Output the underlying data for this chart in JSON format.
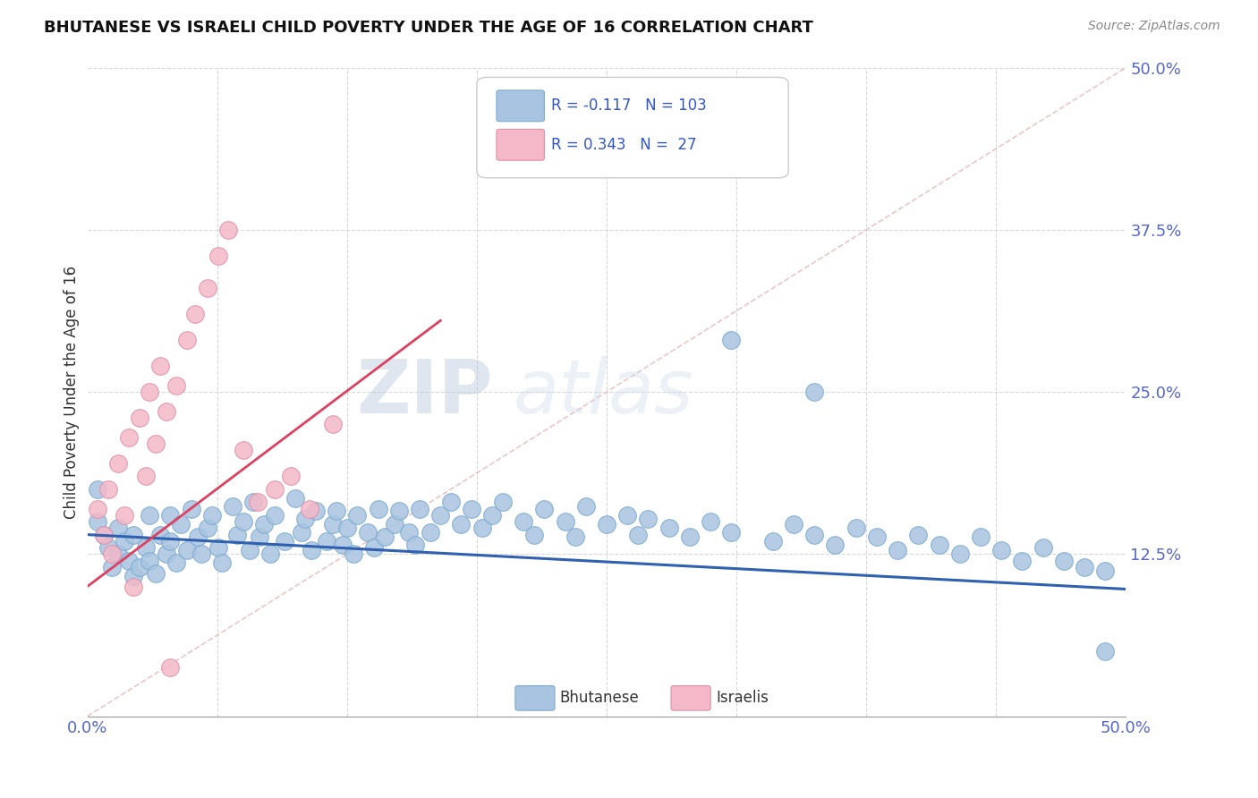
{
  "title": "BHUTANESE VS ISRAELI CHILD POVERTY UNDER THE AGE OF 16 CORRELATION CHART",
  "source": "Source: ZipAtlas.com",
  "ylabel": "Child Poverty Under the Age of 16",
  "xlim": [
    0.0,
    0.5
  ],
  "ylim": [
    0.0,
    0.5
  ],
  "blue_R": "-0.117",
  "blue_N": "103",
  "pink_R": "0.343",
  "pink_N": "27",
  "blue_color": "#a8c4e0",
  "blue_edge": "#7aaad0",
  "pink_color": "#f4b8c8",
  "pink_edge": "#e090a8",
  "blue_line_color": "#3060b0",
  "pink_line_color": "#e04060",
  "diag_line_color": "#e8c0c0",
  "grid_color": "#d8d8d8",
  "watermark_color": "#ccdaee",
  "blue_trend_x": [
    0.0,
    0.5
  ],
  "blue_trend_y": [
    0.14,
    0.098
  ],
  "pink_trend_x": [
    0.0,
    0.17
  ],
  "pink_trend_y": [
    0.1,
    0.305
  ],
  "blue_x": [
    0.005,
    0.005,
    0.008,
    0.01,
    0.012,
    0.015,
    0.015,
    0.018,
    0.02,
    0.022,
    0.022,
    0.025,
    0.028,
    0.03,
    0.03,
    0.033,
    0.035,
    0.038,
    0.04,
    0.04,
    0.043,
    0.045,
    0.048,
    0.05,
    0.053,
    0.055,
    0.058,
    0.06,
    0.063,
    0.065,
    0.07,
    0.072,
    0.075,
    0.078,
    0.08,
    0.083,
    0.085,
    0.088,
    0.09,
    0.095,
    0.1,
    0.103,
    0.105,
    0.108,
    0.11,
    0.115,
    0.118,
    0.12,
    0.123,
    0.125,
    0.128,
    0.13,
    0.135,
    0.138,
    0.14,
    0.143,
    0.148,
    0.15,
    0.155,
    0.158,
    0.16,
    0.165,
    0.17,
    0.175,
    0.18,
    0.185,
    0.19,
    0.195,
    0.2,
    0.21,
    0.215,
    0.22,
    0.23,
    0.235,
    0.24,
    0.25,
    0.26,
    0.265,
    0.27,
    0.28,
    0.29,
    0.3,
    0.31,
    0.33,
    0.34,
    0.35,
    0.36,
    0.37,
    0.38,
    0.39,
    0.4,
    0.41,
    0.42,
    0.43,
    0.44,
    0.45,
    0.46,
    0.47,
    0.48,
    0.49,
    0.35,
    0.31,
    0.49
  ],
  "blue_y": [
    0.175,
    0.15,
    0.14,
    0.13,
    0.115,
    0.145,
    0.125,
    0.135,
    0.12,
    0.14,
    0.108,
    0.115,
    0.13,
    0.155,
    0.12,
    0.11,
    0.14,
    0.125,
    0.155,
    0.135,
    0.118,
    0.148,
    0.128,
    0.16,
    0.138,
    0.125,
    0.145,
    0.155,
    0.13,
    0.118,
    0.162,
    0.14,
    0.15,
    0.128,
    0.165,
    0.138,
    0.148,
    0.125,
    0.155,
    0.135,
    0.168,
    0.142,
    0.152,
    0.128,
    0.158,
    0.135,
    0.148,
    0.158,
    0.132,
    0.145,
    0.125,
    0.155,
    0.142,
    0.13,
    0.16,
    0.138,
    0.148,
    0.158,
    0.142,
    0.132,
    0.16,
    0.142,
    0.155,
    0.165,
    0.148,
    0.16,
    0.145,
    0.155,
    0.165,
    0.15,
    0.14,
    0.16,
    0.15,
    0.138,
    0.162,
    0.148,
    0.155,
    0.14,
    0.152,
    0.145,
    0.138,
    0.15,
    0.142,
    0.135,
    0.148,
    0.14,
    0.132,
    0.145,
    0.138,
    0.128,
    0.14,
    0.132,
    0.125,
    0.138,
    0.128,
    0.12,
    0.13,
    0.12,
    0.115,
    0.112,
    0.25,
    0.29,
    0.05
  ],
  "pink_x": [
    0.005,
    0.008,
    0.01,
    0.012,
    0.015,
    0.018,
    0.02,
    0.022,
    0.025,
    0.028,
    0.03,
    0.033,
    0.035,
    0.038,
    0.04,
    0.043,
    0.048,
    0.052,
    0.058,
    0.063,
    0.068,
    0.075,
    0.082,
    0.09,
    0.098,
    0.107,
    0.118
  ],
  "pink_y": [
    0.16,
    0.14,
    0.175,
    0.125,
    0.195,
    0.155,
    0.215,
    0.1,
    0.23,
    0.185,
    0.25,
    0.21,
    0.27,
    0.235,
    0.038,
    0.255,
    0.29,
    0.31,
    0.33,
    0.355,
    0.375,
    0.205,
    0.165,
    0.175,
    0.185,
    0.16,
    0.225
  ]
}
